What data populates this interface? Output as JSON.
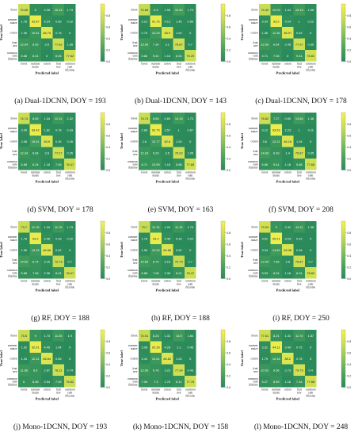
{
  "common": {
    "classes": [
      "forest",
      "summer maize",
      "cotton",
      "fruit tree",
      "common yam rhizome"
    ],
    "xlabel": "Predicted label",
    "ylabel": "True label",
    "colorbar_ticks": [
      "0.8",
      "0.6",
      "0.4",
      "0.2",
      "0.0"
    ],
    "colorscale": [
      "#2a8a5a",
      "#4fa65a",
      "#8cc45a",
      "#c9dd55",
      "#f7f24a"
    ]
  },
  "chart_data": [
    {
      "type": "heatmap",
      "caption": "(a) Dual-1DCNN, DOY = 193",
      "matrix": [
        [
          74.85,
          5.0,
          2.08,
          15.15,
          1.73
        ],
        [
          1.78,
          92.87,
          4.24,
          0.89,
          0.22
        ],
        [
          1.96,
          10.51,
          86.75,
          0.78,
          0.0
        ],
        [
          12.94,
          8.59,
          2.8,
          77.62,
          1.85
        ],
        [
          5.88,
          8.24,
          0.0,
          8.06,
          77.82
        ]
      ]
    },
    {
      "type": "heatmap",
      "caption": "(b) Dual-1DCNN, DOY = 143",
      "matrix": [
        [
          72.66,
          6.3,
          1.58,
          15.92,
          1.73
        ],
        [
          3.12,
          91.75,
          4.12,
          1.45,
          0.56
        ],
        [
          0.78,
          14.29,
          83.9,
          1.04,
          0.0
        ],
        [
          13.99,
          7.34,
          3.1,
          75.87,
          0.7
        ],
        [
          5.88,
          9.41,
          1.18,
          8.24,
          75.29
        ]
      ]
    },
    {
      "type": "heatmap",
      "caption": "(c) Dual-1DCNN, DOY = 178",
      "matrix": [
        [
          74.39,
          10.03,
          1.04,
          15.15,
          1.58
        ],
        [
          3.34,
          93.2,
          4.24,
          1.0,
          0.22
        ],
        [
          1.56,
          11.35,
          85.97,
          0.52,
          0.0
        ],
        [
          12.59,
          6.64,
          2.45,
          77.97,
          0.35
        ],
        [
          4.71,
          7.06,
          0.0,
          9.41,
          78.82
        ]
      ]
    },
    {
      "type": "heatmap",
      "caption": "(d) SVM, DOY = 178",
      "matrix": [
        [
          74.74,
          8.69,
          1.04,
          12.31,
          2.42
        ],
        [
          3.45,
          93.42,
          1.81,
          0.78,
          0.33
        ],
        [
          2.08,
          15.51,
          83.9,
          0.26,
          0.26
        ],
        [
          12.24,
          6.64,
          3.5,
          77.27,
          0.35
        ],
        [
          5.88,
          8.24,
          1.18,
          7.06,
          76.47
        ]
      ]
    },
    {
      "type": "heatmap",
      "caption": "(e) SVM, DOY = 163",
      "matrix": [
        [
          74.74,
          8.65,
          0.69,
          14.15,
          1.73
        ],
        [
          2.89,
          92.75,
          3.57,
          1.0,
          0.67
        ],
        [
          2.6,
          13.77,
          82.6,
          1.04,
          0.0
        ],
        [
          12.24,
          6.29,
          3.5,
          76.92,
          1.05
        ],
        [
          8.71,
          10.59,
          1.18,
          5.88,
          77.65
        ]
      ]
    },
    {
      "type": "heatmap",
      "caption": "(f) SVM, DOY = 208",
      "matrix": [
        [
          76.82,
          7.27,
          0.69,
          13.84,
          1.38
        ],
        [
          3.12,
          93.53,
          2.23,
          1.0,
          0.11
        ],
        [
          3.6,
          12.21,
          84.16,
          1.04,
          0.0
        ],
        [
          14.69,
          6.99,
          1.4,
          75.87,
          0.35
        ],
        [
          5.88,
          9.41,
          1.18,
          5.88,
          77.65
        ]
      ]
    },
    {
      "type": "heatmap",
      "caption": "(g) RF, DOY = 188",
      "matrix": [
        [
          73.7,
          11.76,
          1.04,
          11.76,
          1.73
        ],
        [
          1.78,
          93.2,
          4.46,
          0.33,
          0.22
        ],
        [
          1.56,
          13.25,
          84.68,
          0.52,
          0.0
        ],
        [
          14.69,
          8.74,
          3.15,
          72.73,
          0.7
        ],
        [
          5.88,
          7.06,
          2.35,
          8.24,
          76.47
        ]
      ]
    },
    {
      "type": "heatmap",
      "caption": "(h) RF, DOY = 188",
      "matrix": [
        [
          73.7,
          11.76,
          1.04,
          11.76,
          1.73
        ],
        [
          1.78,
          93.2,
          4.46,
          0.33,
          0.22
        ],
        [
          1.56,
          13.25,
          84.68,
          0.52,
          0.0
        ],
        [
          14.69,
          8.74,
          3.15,
          72.73,
          0.7
        ],
        [
          5.88,
          7.06,
          2.35,
          8.24,
          76.47
        ]
      ]
    },
    {
      "type": "heatmap",
      "caption": "(i) RF, DOY = 250",
      "matrix": [
        [
          79.09,
          9.0,
          2.42,
          12.11,
          1.38
        ],
        [
          3.51,
          95.21,
          3.23,
          0.22,
          0.0
        ],
        [
          3.34,
          14.83,
          83.38,
          0.26,
          0.0
        ],
        [
          12.94,
          7.69,
          2.8,
          75.87,
          0.7
        ],
        [
          5.53,
          8.24,
          1.18,
          8.24,
          78.82
        ]
      ]
    },
    {
      "type": "heatmap",
      "caption": "(j) Mono-1DCNN, DOY = 193",
      "matrix": [
        [
          75.5,
          9.0,
          1.73,
          11.25,
          1.9
        ],
        [
          1.92,
          92.51,
          4.45,
          1.04,
          0.0
        ],
        [
          1.33,
          12.11,
          85.84,
          0.65,
          0.0
        ],
        [
          11.68,
          8.6,
          2.87,
          78.11,
          0.74
        ],
        [
          6.0,
          8.36,
          0.54,
          7.09,
          76.82
        ]
      ]
    },
    {
      "type": "heatmap",
      "caption": "(k) Mono-1DCNN, DOY = 158",
      "matrix": [
        [
          74.01,
          8.23,
          1.31,
          14.5,
          1.84
        ],
        [
          3.08,
          92.39,
          4.26,
          1.1,
          0.45
        ],
        [
          2.42,
          12.61,
          84.62,
          1.04,
          0.0
        ],
        [
          12.06,
          6.78,
          3.22,
          77.34,
          0.43
        ],
        [
          7.06,
          7.3,
          1.76,
          6.12,
          77.76
        ]
      ]
    },
    {
      "type": "heatmap",
      "caption": "(l) Mono-1DCNN, DOY = 248",
      "matrix": [
        [
          77.61,
          8.21,
          1.31,
          11.74,
          1.87
        ],
        [
          3.51,
          94.11,
          3.49,
          0.75,
          0.0
        ],
        [
          1.79,
          12.34,
          85.2,
          0.78,
          0.0
        ],
        [
          10.52,
          6.56,
          2.73,
          79.79,
          0.4
        ],
        [
          5.27,
          8.59,
          1.18,
          7.18,
          77.88
        ]
      ]
    }
  ]
}
